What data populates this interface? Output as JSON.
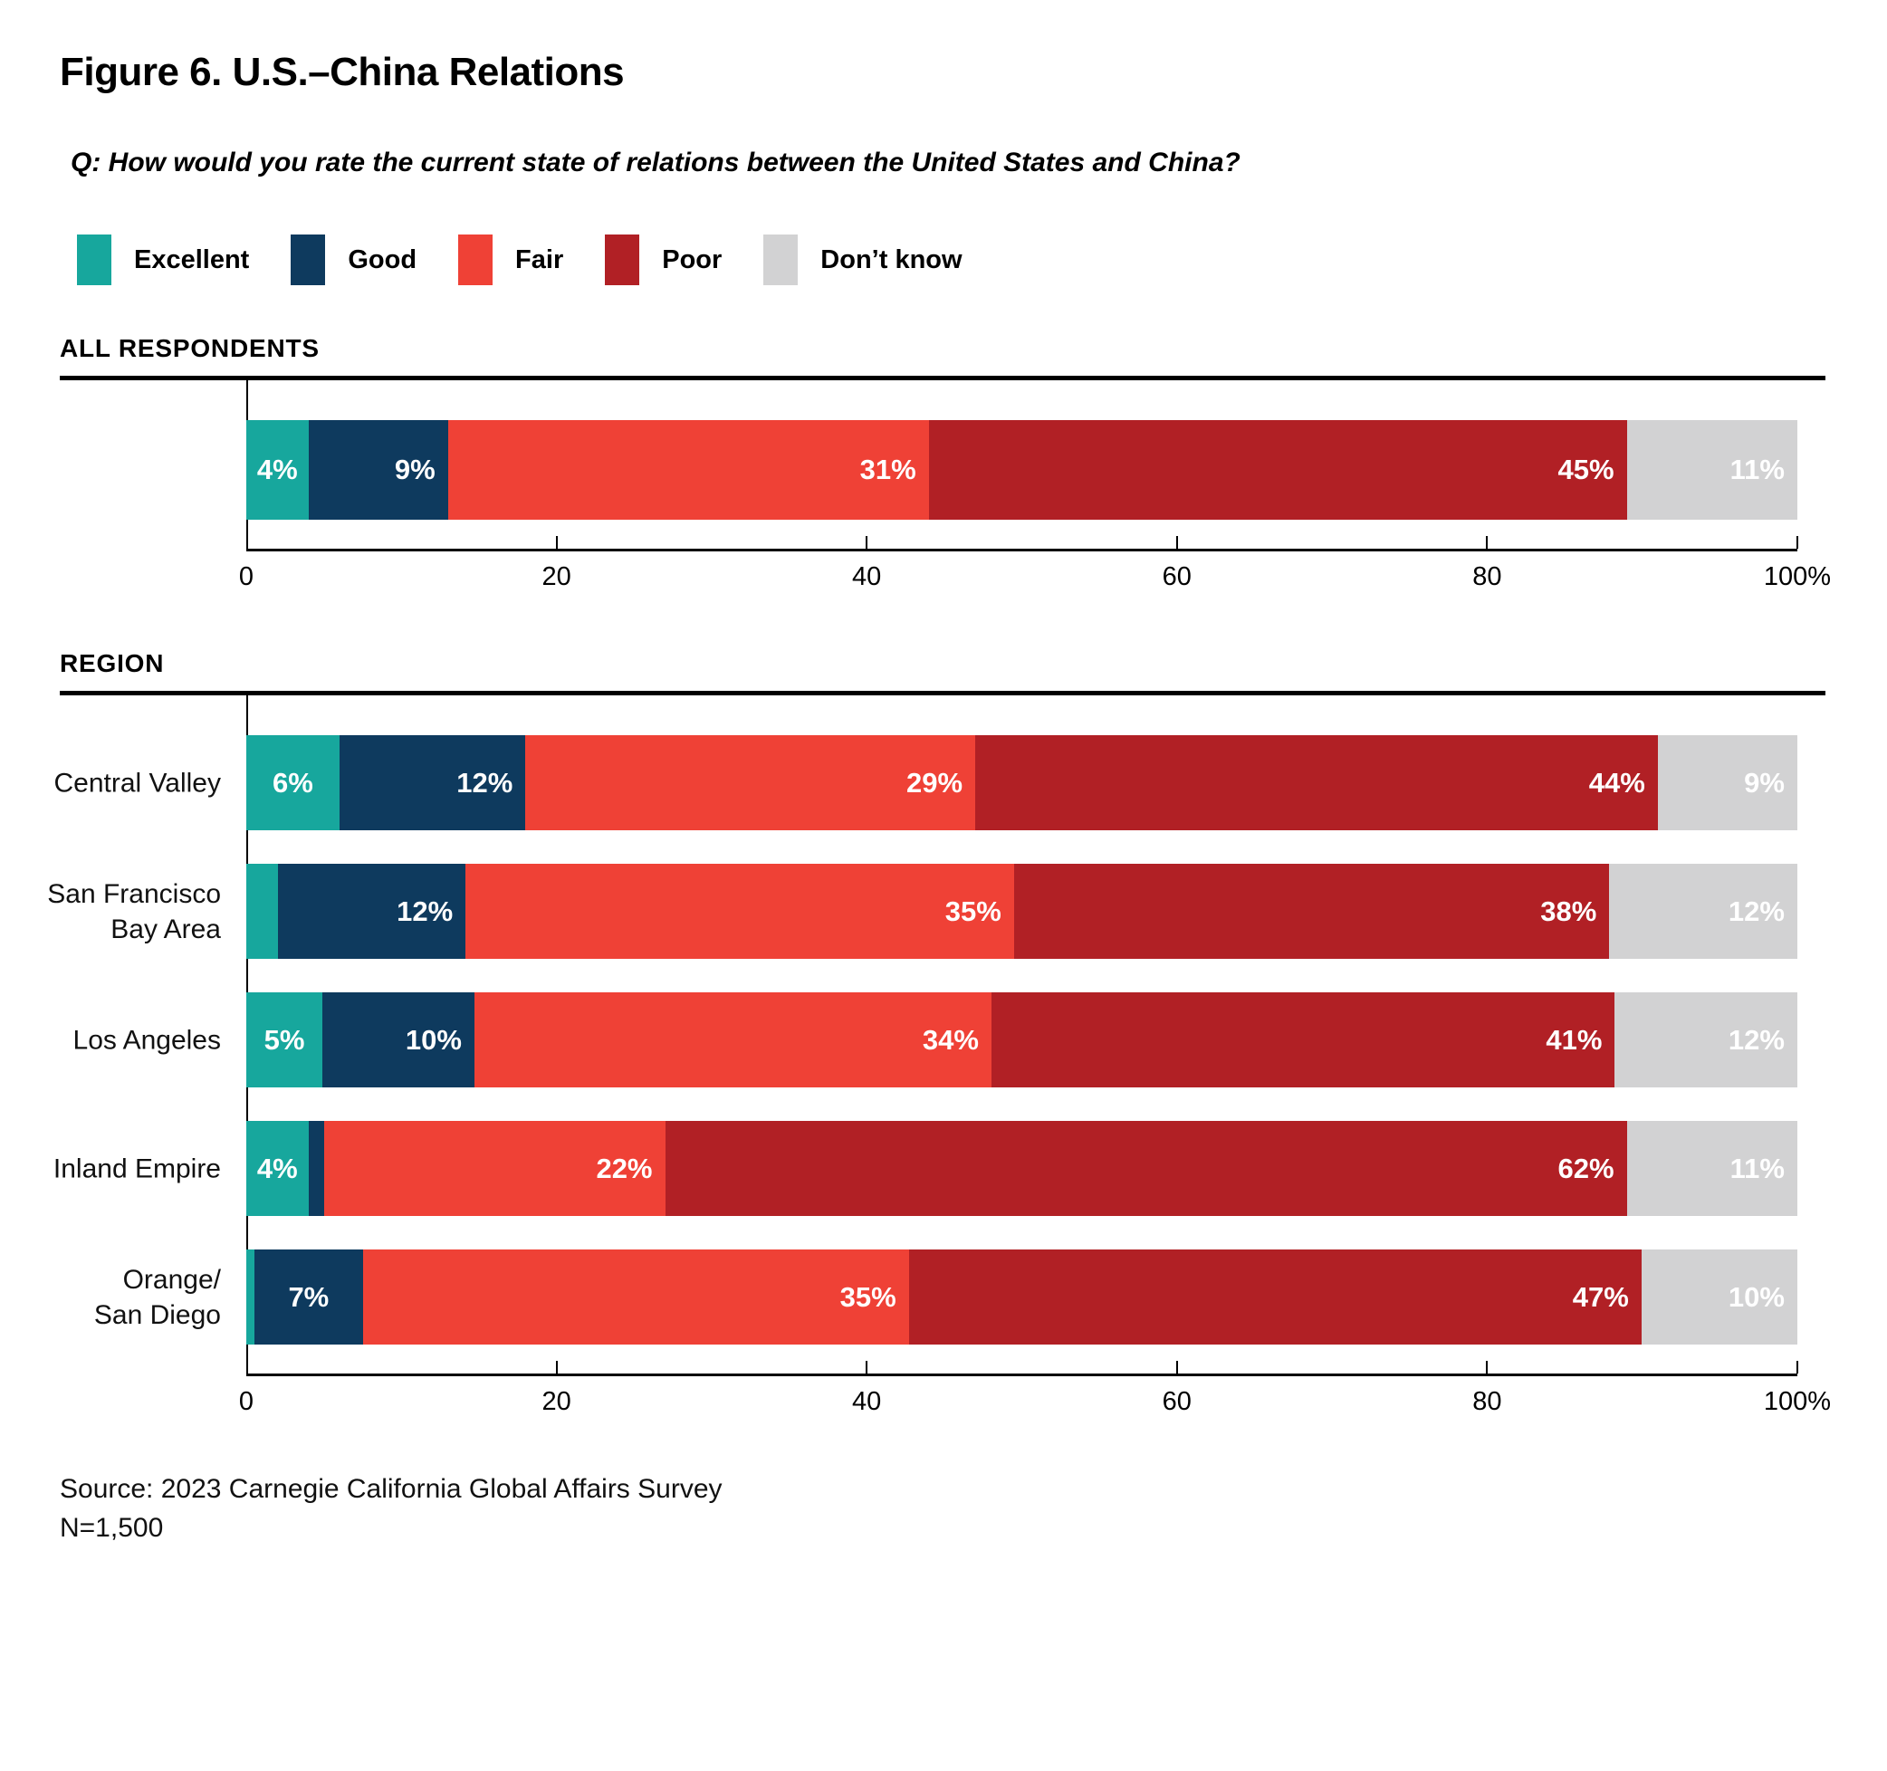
{
  "title": "Figure 6. U.S.–China Relations",
  "question": "Q: How would you rate the current state of relations between the United States and China?",
  "legend": {
    "items": [
      {
        "label": "Excellent",
        "color": "#17A79D"
      },
      {
        "label": "Good",
        "color": "#0E3A5E"
      },
      {
        "label": "Fair",
        "color": "#EF4136"
      },
      {
        "label": "Poor",
        "color": "#B12025"
      },
      {
        "label": "Don’t know",
        "color": "#D2D2D3"
      }
    ]
  },
  "chart_data": {
    "type": "bar",
    "stacked": true,
    "orientation": "horizontal",
    "series": [
      "Excellent",
      "Good",
      "Fair",
      "Poor",
      "Don’t know"
    ],
    "colors": [
      "#17A79D",
      "#0E3A5E",
      "#EF4136",
      "#B12025",
      "#D2D2D3"
    ],
    "x_axis": {
      "range": [
        0,
        100
      ],
      "tick_values": [
        0,
        20,
        40,
        60,
        80,
        100
      ],
      "tick_labels": [
        "0",
        "20",
        "40",
        "60",
        "80",
        "100%"
      ]
    },
    "sections": [
      {
        "header": "ALL RESPONDENTS",
        "bar_style": "mini",
        "rows": [
          {
            "label_lines": [],
            "values": [
              4,
              9,
              31,
              45,
              11
            ],
            "labels": [
              "4%",
              "9%",
              "31%",
              "45%",
              "11%"
            ]
          }
        ]
      },
      {
        "header": "REGION",
        "bar_style": "region",
        "rows": [
          {
            "label_lines": [
              "Central Valley"
            ],
            "values": [
              6,
              12,
              29,
              44,
              9
            ],
            "labels": [
              "6%",
              "12%",
              "29%",
              "44%",
              "9%"
            ]
          },
          {
            "label_lines": [
              "San Francisco",
              "Bay Area"
            ],
            "values": [
              2,
              12,
              35,
              38,
              12
            ],
            "labels": [
              null,
              "12%",
              "35%",
              "38%",
              "12%"
            ]
          },
          {
            "label_lines": [
              "Los Angeles"
            ],
            "values": [
              5,
              10,
              34,
              41,
              12
            ],
            "labels": [
              "5%",
              "10%",
              "34%",
              "41%",
              "12%"
            ]
          },
          {
            "label_lines": [
              "Inland Empire"
            ],
            "values": [
              4,
              1,
              22,
              62,
              11
            ],
            "labels": [
              "4%",
              null,
              "22%",
              "62%",
              "11%"
            ]
          },
          {
            "label_lines": [
              "Orange/",
              "San Diego"
            ],
            "values": [
              0.5,
              7,
              35,
              47,
              10
            ],
            "labels": [
              null,
              "7%",
              "35%",
              "47%",
              "10%"
            ]
          }
        ]
      }
    ]
  },
  "source": {
    "line1": "Source: 2023 Carnegie California Global Affairs Survey",
    "line2": "N=1,500"
  }
}
